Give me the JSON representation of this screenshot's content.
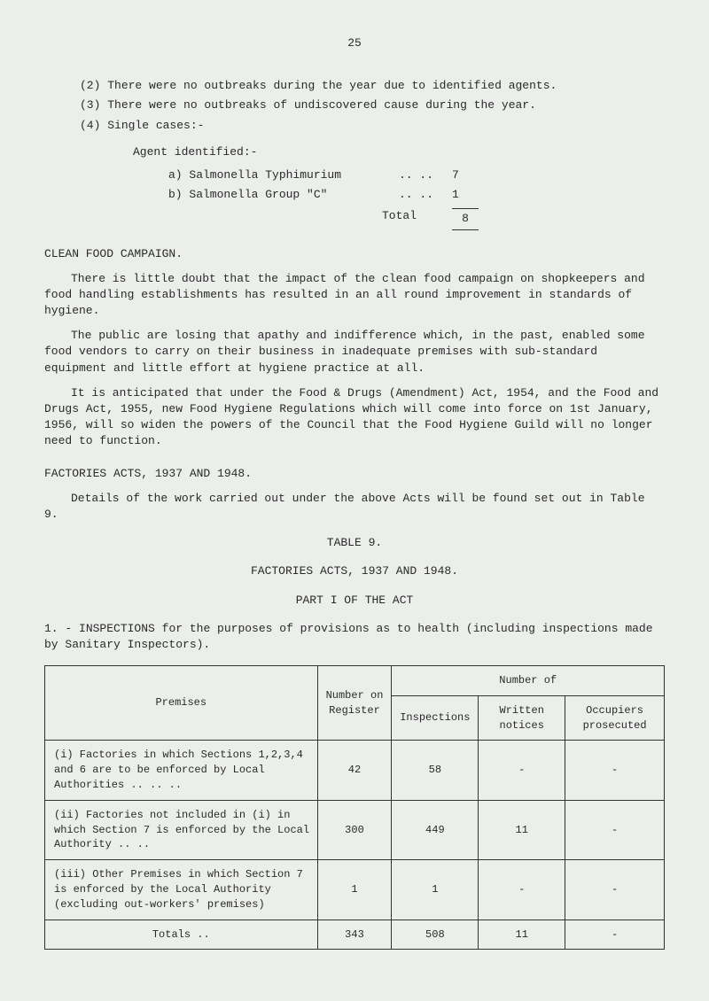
{
  "page_number": "25",
  "numbered_items": [
    {
      "num": "(2)",
      "text": "There were no outbreaks during the year due to identified agents."
    },
    {
      "num": "(3)",
      "text": "There were no outbreaks of undiscovered cause during the year."
    },
    {
      "num": "(4)",
      "text": "Single cases:-"
    }
  ],
  "agent_heading": "Agent identified:-",
  "agents": [
    {
      "label": "a) Salmonella Typhimurium",
      "dots": "..    ..",
      "value": "7"
    },
    {
      "label": "b) Salmonella Group \"C\"",
      "dots": "..    ..",
      "value": "1"
    }
  ],
  "total_label": "Total",
  "total_value": "8",
  "clean_food_heading": "CLEAN FOOD CAMPAIGN.",
  "clean_food_paras": [
    "There is little doubt that the impact of the clean food campaign on shopkeepers and food handling establishments has resulted in an all round improvement in standards of hygiene.",
    "The public are losing that apathy and indifference which, in the past, enabled some food vendors to carry on their business in inadequate premises with sub-standard equipment and little effort at hygiene practice at all.",
    "It is anticipated that under the Food & Drugs (Amendment) Act, 1954, and the Food and Drugs Act, 1955, new Food Hygiene Regulations which will come into force on 1st January, 1956, will so widen the powers of the Council that the Food Hygiene Guild will no longer need to function."
  ],
  "factories_heading": "FACTORIES ACTS, 1937 AND 1948.",
  "factories_para": "Details of the work carried out under the above Acts will be found set out in Table 9.",
  "table_label": "TABLE 9.",
  "table_title": "FACTORIES ACTS, 1937 AND 1948.",
  "table_part": "PART I OF THE ACT",
  "inspections_intro_num": "1.",
  "inspections_intro": "- INSPECTIONS for the purposes of provisions as to health (including inspections made by Sanitary Inspectors).",
  "table": {
    "headers": {
      "premises": "Premises",
      "register": "Number on Register",
      "number_of": "Number of",
      "inspections": "Inspections",
      "written": "Written notices",
      "occupiers": "Occupiers prosecuted"
    },
    "rows": [
      {
        "desc": "(i) Factories in which Sections 1,2,3,4 and 6 are to be enforced by Local Authorities    ..         ..        ..",
        "register": "42",
        "inspections": "58",
        "written": "-",
        "occupiers": "-"
      },
      {
        "desc": "(ii) Factories not included in (i) in which Section 7 is enforced by the Local Authority         ..        ..",
        "register": "300",
        "inspections": "449",
        "written": "11",
        "occupiers": "-"
      },
      {
        "desc": "(iii) Other Premises in which Section 7 is enforced by the Local Authority (excluding out-workers' premises)",
        "register": "1",
        "inspections": "1",
        "written": "-",
        "occupiers": "-"
      }
    ],
    "totals": {
      "label": "Totals     ..",
      "register": "343",
      "inspections": "508",
      "written": "11",
      "occupiers": "-"
    }
  }
}
